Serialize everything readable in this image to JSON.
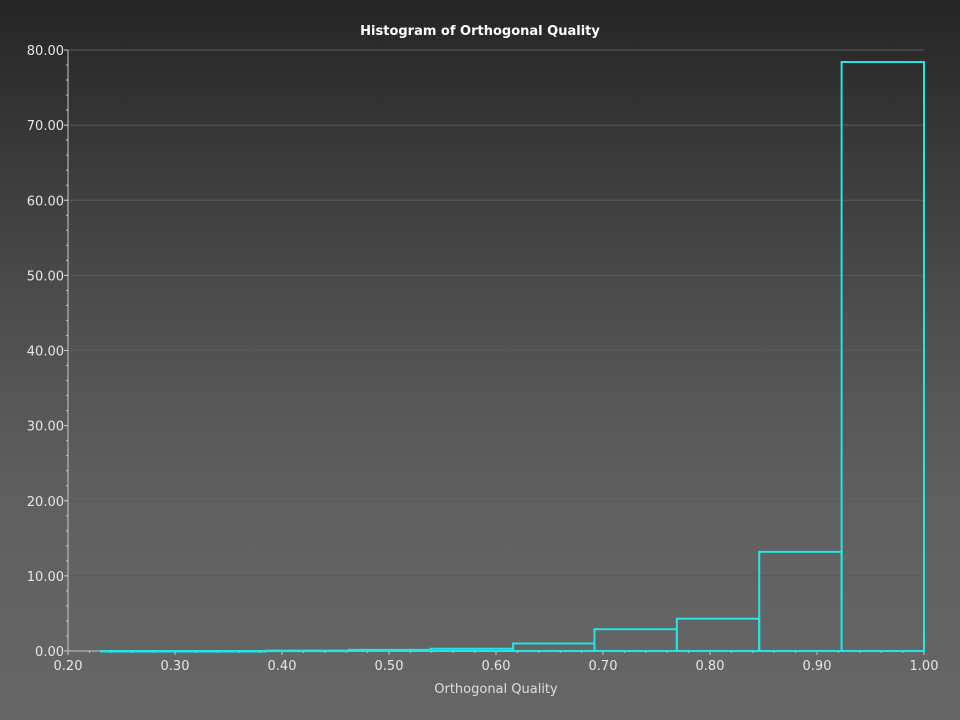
{
  "chart_data": {
    "type": "bar",
    "title": "Histogram of Orthogonal Quality",
    "xlabel": "Orthogonal Quality",
    "ylabel": "",
    "xlim": [
      0.2,
      1.0
    ],
    "ylim": [
      0,
      80
    ],
    "x_ticks": [
      "0.20",
      "0.30",
      "0.40",
      "0.50",
      "0.60",
      "0.70",
      "0.80",
      "0.90",
      "1.00"
    ],
    "y_ticks": [
      "0.00",
      "10.00",
      "20.00",
      "30.00",
      "40.00",
      "50.00",
      "60.00",
      "70.00",
      "80.00"
    ],
    "bins": [
      {
        "x0": 0.231,
        "x1": 0.308,
        "value": 0.0
      },
      {
        "x0": 0.308,
        "x1": 0.385,
        "value": 0.0
      },
      {
        "x0": 0.385,
        "x1": 0.462,
        "value": 0.05
      },
      {
        "x0": 0.462,
        "x1": 0.539,
        "value": 0.15
      },
      {
        "x0": 0.539,
        "x1": 0.616,
        "value": 0.3
      },
      {
        "x0": 0.616,
        "x1": 0.692,
        "value": 1.0
      },
      {
        "x0": 0.692,
        "x1": 0.769,
        "value": 2.9
      },
      {
        "x0": 0.769,
        "x1": 0.846,
        "value": 4.3
      },
      {
        "x0": 0.846,
        "x1": 0.923,
        "value": 13.2
      },
      {
        "x0": 0.923,
        "x1": 1.0,
        "value": 78.4
      }
    ],
    "grid": true,
    "colors": {
      "bar_stroke": "#22e5e5",
      "grid": "#5a5a5a",
      "axis": "#c8c8c8"
    }
  }
}
